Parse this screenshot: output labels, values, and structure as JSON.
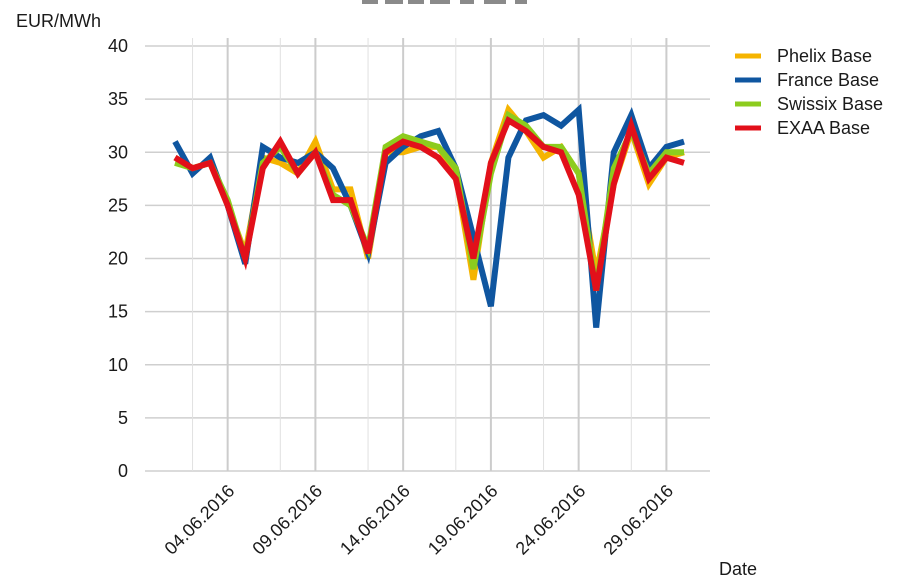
{
  "chart_data": {
    "type": "line",
    "ylabel": "EUR/MWh",
    "xlabel": "Date",
    "ylim": [
      0,
      40
    ],
    "y_ticks": [
      "0",
      "5",
      "10",
      "15",
      "20",
      "25",
      "30",
      "35",
      "40"
    ],
    "x_tick_labels": [
      "04.06.2016",
      "09.06.2016",
      "14.06.2016",
      "19.06.2016",
      "24.06.2016",
      "29.06.2016"
    ],
    "x": [
      "01.06.2016",
      "02.06.2016",
      "03.06.2016",
      "04.06.2016",
      "05.06.2016",
      "06.06.2016",
      "07.06.2016",
      "08.06.2016",
      "09.06.2016",
      "10.06.2016",
      "11.06.2016",
      "12.06.2016",
      "13.06.2016",
      "14.06.2016",
      "15.06.2016",
      "16.06.2016",
      "17.06.2016",
      "18.06.2016",
      "19.06.2016",
      "20.06.2016",
      "21.06.2016",
      "22.06.2016",
      "23.06.2016",
      "24.06.2016",
      "25.06.2016",
      "26.06.2016",
      "27.06.2016",
      "28.06.2016",
      "29.06.2016",
      "30.06.2016"
    ],
    "grid": true,
    "legend_position": "right",
    "series": [
      {
        "name": "Phelix Base",
        "color": "#f5b400",
        "values": [
          29.5,
          28.5,
          29.0,
          25.0,
          20.5,
          29.5,
          29.0,
          28.0,
          31.0,
          26.5,
          26.5,
          20.0,
          30.0,
          30.0,
          30.5,
          30.5,
          28.0,
          18.0,
          29.0,
          34.0,
          32.0,
          29.5,
          30.5,
          28.0,
          18.5,
          27.0,
          32.0,
          27.0,
          29.5,
          30.0
        ]
      },
      {
        "name": "France Base",
        "color": "#0f56a0",
        "values": [
          31.0,
          28.0,
          29.5,
          25.0,
          19.5,
          30.5,
          29.5,
          29.0,
          30.0,
          28.5,
          25.0,
          20.5,
          29.0,
          30.5,
          31.5,
          32.0,
          28.5,
          22.0,
          15.5,
          29.5,
          33.0,
          33.5,
          32.5,
          34.0,
          13.5,
          30.0,
          33.5,
          28.5,
          30.5,
          31.0
        ]
      },
      {
        "name": "Swissix Base",
        "color": "#8ccc1e",
        "values": [
          29.0,
          28.5,
          29.0,
          25.5,
          20.0,
          29.0,
          30.5,
          28.0,
          30.0,
          26.0,
          25.0,
          21.0,
          30.5,
          31.5,
          31.0,
          30.5,
          28.5,
          19.0,
          28.0,
          33.5,
          32.5,
          30.5,
          30.5,
          28.0,
          17.0,
          28.5,
          32.0,
          28.0,
          30.0,
          30.0
        ]
      },
      {
        "name": "EXAA Base",
        "color": "#e2101a",
        "values": [
          29.5,
          28.5,
          29.0,
          25.0,
          20.0,
          28.5,
          31.0,
          28.0,
          30.0,
          25.5,
          25.5,
          20.5,
          30.0,
          31.0,
          30.5,
          29.5,
          27.5,
          20.0,
          29.0,
          33.0,
          32.0,
          30.5,
          30.0,
          26.0,
          17.0,
          27.0,
          32.5,
          27.5,
          29.5,
          29.0
        ]
      }
    ]
  }
}
